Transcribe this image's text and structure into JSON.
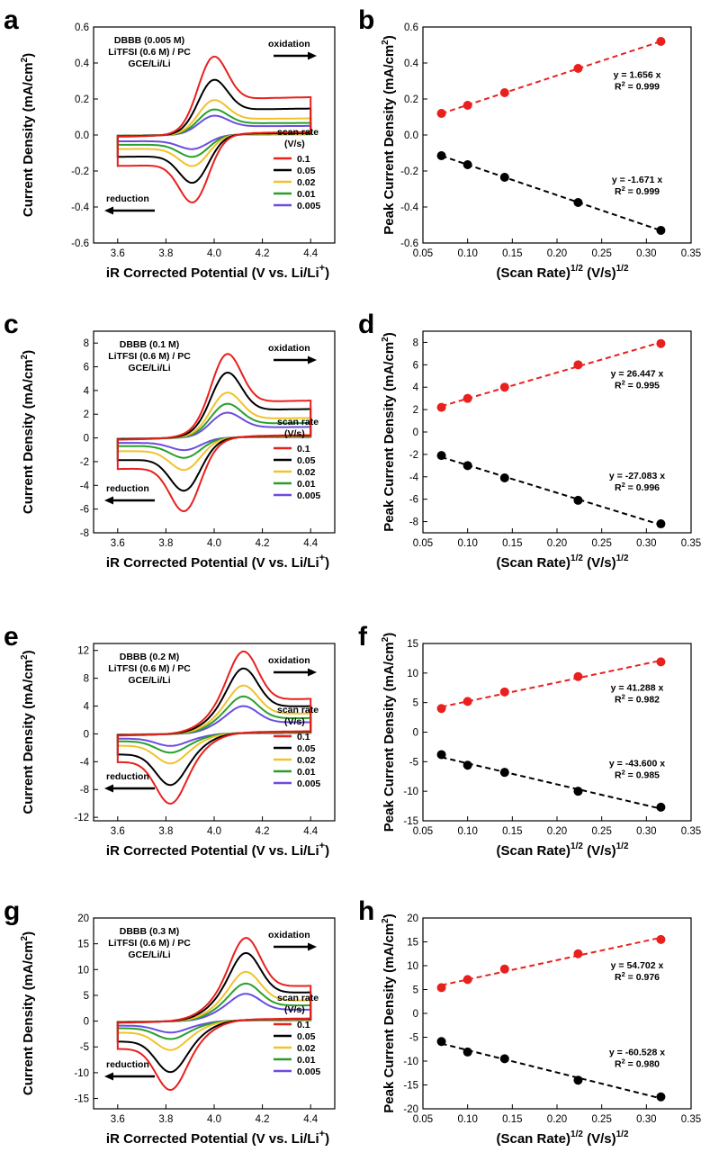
{
  "figure": {
    "cv_xlabel_main": "iR Corrected Potential (V vs. Li/Li",
    "cv_xlabel_sup": "+",
    "cv_xlabel_close": ")",
    "cv_ylabel": "Current Density (mA/cm",
    "cv_ylabel_sup": "2",
    "cv_ylabel_close": ")",
    "fit_xlabel_a": "(Scan Rate)",
    "fit_xlabel_sup1": "1/2",
    "fit_xlabel_b": " (V/s)",
    "fit_xlabel_sup2": "1/2",
    "fit_ylabel": "Peak Current Density (mA/cm",
    "fit_ylabel_sup": "2",
    "fit_ylabel_close": ")",
    "legend_title1": "scan rate",
    "legend_title2": "(V/s)",
    "oxidation_label": "oxidation",
    "reduction_label": "reduction",
    "colors": {
      "0.1": "#e8201e",
      "0.05": "#000000",
      "0.02": "#f2c12b",
      "0.01": "#2aa02a",
      "0.005": "#6a4de0",
      "fit_ox": "#e8201e",
      "fit_red": "#000000"
    }
  },
  "chart_data": [
    {
      "panel": "a",
      "type": "line",
      "xlabel": "iR Corrected Potential (V vs. Li/Li+)",
      "ylabel": "Current Density (mA/cm2)",
      "xlim": [
        3.5,
        4.5
      ],
      "ylim": [
        -0.6,
        0.6
      ],
      "xticks": [
        "3.6",
        "3.8",
        "4.0",
        "4.2",
        "4.4"
      ],
      "yticks": [
        "-0.6",
        "-0.4",
        "-0.2",
        "0.0",
        "0.2",
        "0.4",
        "0.6"
      ],
      "annotation": [
        "DBBB (0.005 M)",
        "LiTFSI (0.6 M) / PC",
        "GCE/Li/Li"
      ],
      "legend": [
        "0.1",
        "0.05",
        "0.02",
        "0.01",
        "0.005"
      ],
      "peaks": {
        "Epa": 3.99,
        "Epc": 3.92,
        "ipa": [
          0.5,
          0.35,
          0.22,
          0.16,
          0.12
        ],
        "ipc": [
          -0.44,
          -0.31,
          -0.2,
          -0.14,
          -0.09
        ]
      }
    },
    {
      "panel": "b",
      "type": "scatter",
      "xlabel": "(Scan Rate)1/2 (V/s)1/2",
      "ylabel": "Peak Current Density (mA/cm2)",
      "xlim": [
        0.05,
        0.35
      ],
      "ylim": [
        -0.6,
        0.6
      ],
      "xticks": [
        "0.05",
        "0.10",
        "0.15",
        "0.20",
        "0.25",
        "0.30",
        "0.35"
      ],
      "yticks": [
        "-0.6",
        "-0.4",
        "-0.2",
        "0.0",
        "0.2",
        "0.4",
        "0.6"
      ],
      "x": [
        0.0707,
        0.1,
        0.1414,
        0.2236,
        0.3162
      ],
      "series": [
        {
          "name": "oxidation",
          "values": [
            0.12,
            0.165,
            0.235,
            0.37,
            0.52
          ],
          "slope": 1.656,
          "eq": "y = 1.656 x",
          "r2_val": "= 0.999"
        },
        {
          "name": "reduction",
          "values": [
            -0.115,
            -0.165,
            -0.235,
            -0.375,
            -0.53
          ],
          "slope": -1.671,
          "eq": "y = -1.671 x",
          "r2_val": "= 0.999"
        }
      ]
    },
    {
      "panel": "c",
      "type": "line",
      "xlabel": "iR Corrected Potential (V vs. Li/Li+)",
      "ylabel": "Current Density (mA/cm2)",
      "xlim": [
        3.5,
        4.5
      ],
      "ylim": [
        -8,
        9
      ],
      "xticks": [
        "3.6",
        "3.8",
        "4.0",
        "4.2",
        "4.4"
      ],
      "yticks": [
        "-8",
        "-6",
        "-4",
        "-2",
        "0",
        "2",
        "4",
        "6",
        "8"
      ],
      "annotation": [
        "DBBB (0.1 M)",
        "LiTFSI (0.6 M) / PC",
        "GCE/Li/Li"
      ],
      "legend": [
        "0.1",
        "0.05",
        "0.02",
        "0.01",
        "0.005"
      ],
      "peaks": {
        "Epa": 4.05,
        "Epc": 3.88,
        "ipa": [
          7.5,
          5.8,
          4.0,
          3.0,
          2.2
        ],
        "ipc": [
          -6.7,
          -4.8,
          -2.9,
          -1.8,
          -1.1
        ]
      }
    },
    {
      "panel": "d",
      "type": "scatter",
      "xlabel": "(Scan Rate)1/2 (V/s)1/2",
      "ylabel": "Peak Current Density (mA/cm2)",
      "xlim": [
        0.05,
        0.35
      ],
      "ylim": [
        -9,
        9
      ],
      "xticks": [
        "0.05",
        "0.10",
        "0.15",
        "0.20",
        "0.25",
        "0.30",
        "0.35"
      ],
      "yticks": [
        "-8",
        "-6",
        "-4",
        "-2",
        "0",
        "2",
        "4",
        "6",
        "8"
      ],
      "x": [
        0.0707,
        0.1,
        0.1414,
        0.2236,
        0.3162
      ],
      "series": [
        {
          "name": "oxidation",
          "values": [
            2.2,
            3.0,
            4.0,
            6.0,
            7.9
          ],
          "slope": 26.447,
          "eq": "y = 26.447 x",
          "r2_val": "= 0.995"
        },
        {
          "name": "reduction",
          "values": [
            -2.1,
            -3.0,
            -4.1,
            -6.1,
            -8.2
          ],
          "slope": -27.083,
          "eq": "y = -27.083 x",
          "r2_val": "= 0.996"
        }
      ]
    },
    {
      "panel": "e",
      "type": "line",
      "xlabel": "iR Corrected Potential (V vs. Li/Li+)",
      "ylabel": "Current Density (mA/cm2)",
      "xlim": [
        3.5,
        4.5
      ],
      "ylim": [
        -12.5,
        13
      ],
      "xticks": [
        "3.6",
        "3.8",
        "4.0",
        "4.2",
        "4.4"
      ],
      "yticks": [
        "-12",
        "-8",
        "-4",
        "0",
        "4",
        "8",
        "12"
      ],
      "annotation": [
        "DBBB (0.2 M)",
        "LiTFSI (0.6 M) / PC",
        "GCE/Li/Li"
      ],
      "legend": [
        "0.1",
        "0.05",
        "0.02",
        "0.01",
        "0.005"
      ],
      "peaks": {
        "Epa": 4.12,
        "Epc": 3.82,
        "ipa": [
          12.0,
          9.5,
          7.0,
          5.4,
          4.0
        ],
        "ipc": [
          -10.4,
          -7.6,
          -4.4,
          -2.8,
          -1.8
        ]
      }
    },
    {
      "panel": "f",
      "type": "scatter",
      "xlabel": "(Scan Rate)1/2 (V/s)1/2",
      "ylabel": "Peak Current Density (mA/cm2)",
      "xlim": [
        0.05,
        0.35
      ],
      "ylim": [
        -15,
        15
      ],
      "xticks": [
        "0.05",
        "0.10",
        "0.15",
        "0.20",
        "0.25",
        "0.30",
        "0.35"
      ],
      "yticks": [
        "-15",
        "-10",
        "-5",
        "0",
        "5",
        "10",
        "15"
      ],
      "x": [
        0.0707,
        0.1,
        0.1414,
        0.2236,
        0.3162
      ],
      "series": [
        {
          "name": "oxidation",
          "values": [
            4.0,
            5.2,
            6.8,
            9.4,
            11.9
          ],
          "slope": 41.288,
          "eq": "y = 41.288 x",
          "r2_val": "= 0.982"
        },
        {
          "name": "reduction",
          "values": [
            -3.8,
            -5.6,
            -6.8,
            -10.0,
            -12.7
          ],
          "slope": -43.6,
          "eq": "y = -43.600 x",
          "r2_val": "= 0.985"
        }
      ]
    },
    {
      "panel": "g",
      "type": "line",
      "xlabel": "iR Corrected Potential (V vs. Li/Li+)",
      "ylabel": "Current Density (mA/cm2)",
      "xlim": [
        3.5,
        4.5
      ],
      "ylim": [
        -17,
        20
      ],
      "xticks": [
        "3.6",
        "3.8",
        "4.0",
        "4.2",
        "4.4"
      ],
      "yticks": [
        "-15",
        "-10",
        "-5",
        "0",
        "5",
        "10",
        "15",
        "20"
      ],
      "annotation": [
        "DBBB (0.3 M)",
        "LiTFSI (0.6 M) / PC",
        "GCE/Li/Li"
      ],
      "legend": [
        "0.1",
        "0.05",
        "0.02",
        "0.01",
        "0.005"
      ],
      "peaks": {
        "Epa": 4.13,
        "Epc": 3.82,
        "ipa": [
          16.3,
          13.3,
          9.6,
          7.3,
          5.3
        ],
        "ipc": [
          -13.8,
          -10.2,
          -5.8,
          -3.6,
          -2.3
        ]
      }
    },
    {
      "panel": "h",
      "type": "scatter",
      "xlabel": "(Scan Rate)1/2 (V/s)1/2",
      "ylabel": "Peak Current Density (mA/cm2)",
      "xlim": [
        0.05,
        0.35
      ],
      "ylim": [
        -20,
        20
      ],
      "xticks": [
        "0.05",
        "0.10",
        "0.15",
        "0.20",
        "0.25",
        "0.30",
        "0.35"
      ],
      "yticks": [
        "-20",
        "-15",
        "-10",
        "-5",
        "0",
        "5",
        "10",
        "15",
        "20"
      ],
      "x": [
        0.0707,
        0.1,
        0.1414,
        0.2236,
        0.3162
      ],
      "series": [
        {
          "name": "oxidation",
          "values": [
            5.4,
            7.1,
            9.3,
            12.5,
            15.5
          ],
          "slope": 54.702,
          "eq": "y = 54.702 x",
          "r2_val": "= 0.976"
        },
        {
          "name": "reduction",
          "values": [
            -5.9,
            -8.1,
            -9.5,
            -14.0,
            -17.5
          ],
          "slope": -60.528,
          "eq": "y = -60.528 x",
          "r2_val": "= 0.980"
        }
      ]
    }
  ]
}
